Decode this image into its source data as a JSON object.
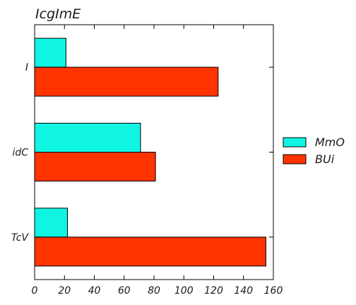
{
  "chart_data": {
    "type": "bar",
    "orientation": "horizontal",
    "title": "IcgImE",
    "xlabel": "",
    "ylabel": "",
    "categories": [
      "I",
      "idC",
      "TcV"
    ],
    "series": [
      {
        "name": "MmO",
        "color": "#10f5e2",
        "values": [
          21,
          71,
          22
        ]
      },
      {
        "name": "BUi",
        "color": "#ff3300",
        "values": [
          123,
          81,
          155
        ]
      }
    ],
    "xlim": [
      0,
      160
    ],
    "xticks": [
      0,
      20,
      40,
      60,
      80,
      100,
      120,
      140,
      160
    ],
    "grid": false,
    "legend_position": "right"
  }
}
